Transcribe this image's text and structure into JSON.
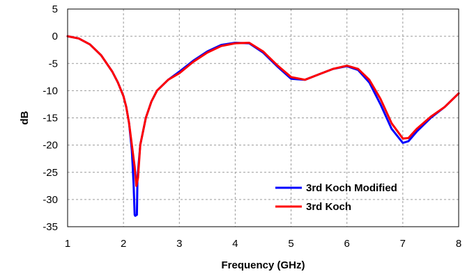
{
  "chart_data": {
    "type": "line",
    "title": "",
    "xlabel": "Frequency (GHz)",
    "ylabel": "dB",
    "xlim": [
      1,
      8
    ],
    "ylim": [
      -35,
      5
    ],
    "xticks": [
      1,
      2,
      3,
      4,
      5,
      6,
      7,
      8
    ],
    "yticks": [
      5,
      0,
      -5,
      -10,
      -15,
      -20,
      -25,
      -30,
      -35
    ],
    "grid": true,
    "legend_position": "bottom-right",
    "series": [
      {
        "name": "3rd Koch Modified",
        "color": "#0000ff",
        "x": [
          1.0,
          1.2,
          1.4,
          1.6,
          1.8,
          1.9,
          2.0,
          2.05,
          2.1,
          2.15,
          2.18,
          2.2,
          2.21,
          2.24,
          2.25,
          2.3,
          2.4,
          2.5,
          2.6,
          2.8,
          3.0,
          3.25,
          3.5,
          3.75,
          4.0,
          4.25,
          4.5,
          4.75,
          5.0,
          5.25,
          5.5,
          5.75,
          6.0,
          6.2,
          6.4,
          6.6,
          6.8,
          7.0,
          7.1,
          7.25,
          7.5,
          7.75,
          8.0
        ],
        "y": [
          0.0,
          -0.4,
          -1.5,
          -3.5,
          -6.5,
          -8.5,
          -11.0,
          -13.0,
          -16.0,
          -21.0,
          -27.0,
          -32.8,
          -33.0,
          -32.8,
          -26.0,
          -20.0,
          -15.0,
          -12.0,
          -10.0,
          -8.0,
          -6.5,
          -4.5,
          -2.8,
          -1.6,
          -1.2,
          -1.3,
          -3.0,
          -5.5,
          -7.8,
          -8.0,
          -7.0,
          -6.0,
          -5.5,
          -6.2,
          -8.5,
          -12.5,
          -17.0,
          -19.6,
          -19.3,
          -17.5,
          -15.0,
          -13.0,
          -10.5
        ]
      },
      {
        "name": "3rd Koch",
        "color": "#ff0000",
        "x": [
          1.0,
          1.2,
          1.4,
          1.6,
          1.8,
          1.9,
          2.0,
          2.05,
          2.1,
          2.15,
          2.2,
          2.23,
          2.26,
          2.3,
          2.4,
          2.5,
          2.6,
          2.8,
          3.0,
          3.25,
          3.5,
          3.75,
          4.0,
          4.25,
          4.5,
          4.75,
          5.0,
          5.25,
          5.5,
          5.75,
          6.0,
          6.2,
          6.4,
          6.6,
          6.8,
          7.0,
          7.1,
          7.25,
          7.5,
          7.75,
          8.0
        ],
        "y": [
          0.0,
          -0.4,
          -1.5,
          -3.5,
          -6.5,
          -8.5,
          -11.0,
          -13.0,
          -16.0,
          -20.0,
          -24.0,
          -27.5,
          -26.0,
          -20.0,
          -15.0,
          -12.0,
          -10.0,
          -8.0,
          -6.8,
          -4.7,
          -3.0,
          -1.8,
          -1.3,
          -1.2,
          -2.8,
          -5.3,
          -7.5,
          -8.0,
          -7.0,
          -6.0,
          -5.4,
          -6.0,
          -8.0,
          -11.5,
          -16.0,
          -18.8,
          -18.7,
          -17.0,
          -14.8,
          -13.0,
          -10.5
        ]
      }
    ]
  }
}
